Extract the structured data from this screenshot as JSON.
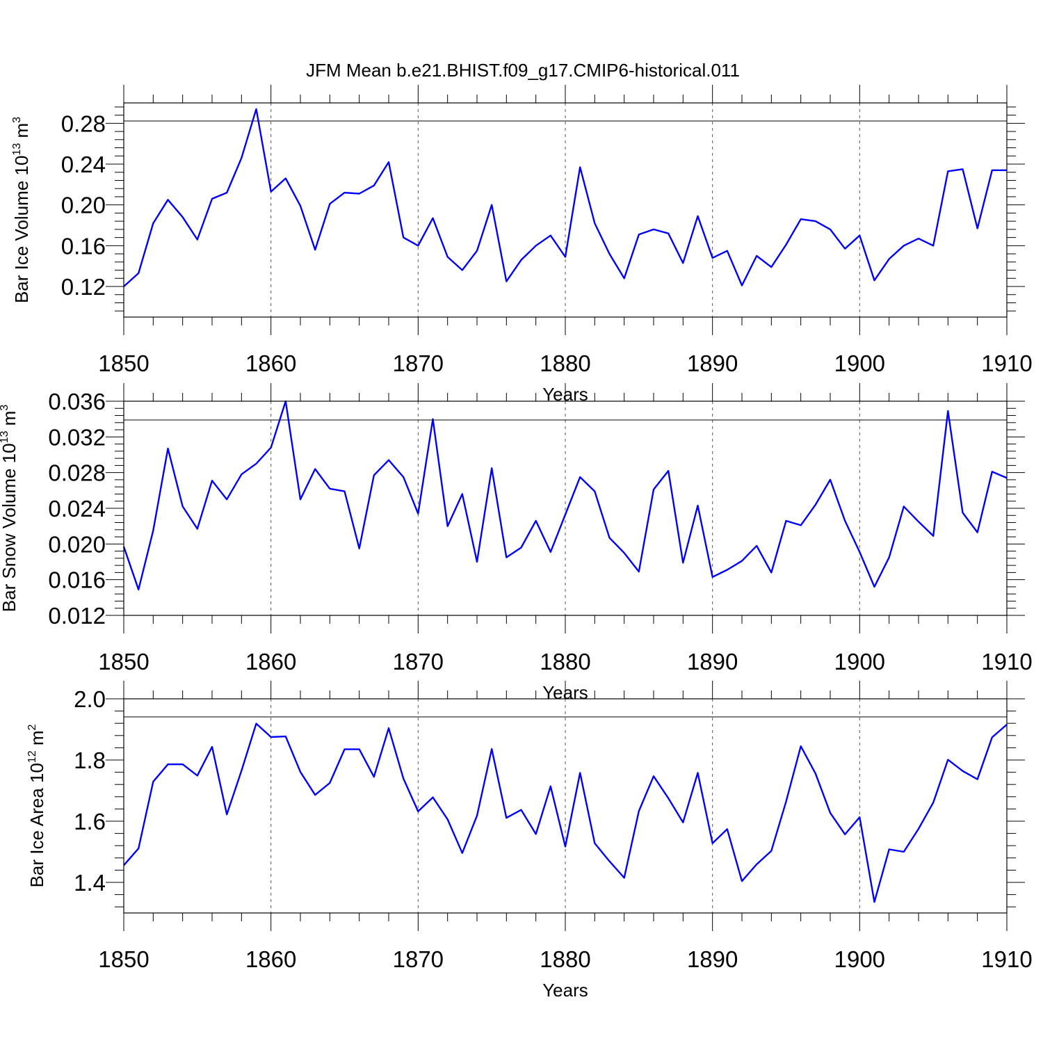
{
  "title": "JFM Mean b.e21.BHIST.f09_g17.CMIP6-historical.011",
  "line_color": "#0000ff",
  "chart_data": [
    {
      "type": "line",
      "ylabel": "Bar Ice Volume",
      "yunit_base": "10",
      "yunit_exp": "13",
      "yunit_tail": "m",
      "yunit_tail_exp": "3",
      "xlabel": "Years",
      "xlim": [
        1850,
        1910
      ],
      "ylim": [
        0.09,
        0.3
      ],
      "xticks": [
        "1850",
        "1860",
        "1870",
        "1880",
        "1890",
        "1900",
        "1910"
      ],
      "yticks": [
        "0.12",
        "0.16",
        "0.20",
        "0.24",
        "0.28"
      ],
      "grid": "vertical dashed at major x ticks",
      "x_start": 1850,
      "values": [
        0.12,
        0.133,
        0.182,
        0.205,
        0.188,
        0.166,
        0.206,
        0.212,
        0.246,
        0.294,
        0.213,
        0.226,
        0.199,
        0.156,
        0.201,
        0.212,
        0.211,
        0.219,
        0.242,
        0.168,
        0.16,
        0.187,
        0.149,
        0.136,
        0.155,
        0.2,
        0.125,
        0.146,
        0.16,
        0.17,
        0.149,
        0.237,
        0.182,
        0.152,
        0.128,
        0.171,
        0.176,
        0.172,
        0.143,
        0.189,
        0.148,
        0.155,
        0.121,
        0.15,
        0.139,
        0.161,
        0.186,
        0.184,
        0.176,
        0.157,
        0.17,
        0.126,
        0.147,
        0.16,
        0.167,
        0.16,
        0.233,
        0.235,
        0.177,
        0.234,
        0.234
      ]
    },
    {
      "type": "line",
      "ylabel": "Bar Snow Volume",
      "yunit_base": "10",
      "yunit_exp": "13",
      "yunit_tail": "m",
      "yunit_tail_exp": "3",
      "xlabel": "Years",
      "xlim": [
        1850,
        1910
      ],
      "ylim": [
        0.012,
        0.036
      ],
      "xticks": [
        "1850",
        "1860",
        "1870",
        "1880",
        "1890",
        "1900",
        "1910"
      ],
      "yticks": [
        "0.012",
        "0.016",
        "0.020",
        "0.024",
        "0.028",
        "0.032",
        "0.036"
      ],
      "grid": "vertical dashed at major x ticks",
      "x_start": 1850,
      "values": [
        0.0197,
        0.0149,
        0.0215,
        0.0307,
        0.0242,
        0.0217,
        0.0271,
        0.025,
        0.0278,
        0.029,
        0.0308,
        0.036,
        0.025,
        0.0284,
        0.0262,
        0.0259,
        0.0195,
        0.0277,
        0.0294,
        0.0275,
        0.0234,
        0.034,
        0.022,
        0.0256,
        0.018,
        0.0285,
        0.0185,
        0.0196,
        0.0226,
        0.0191,
        0.0233,
        0.0275,
        0.0259,
        0.0207,
        0.019,
        0.0169,
        0.0261,
        0.0282,
        0.0179,
        0.0243,
        0.0163,
        0.0171,
        0.0181,
        0.0198,
        0.0168,
        0.0226,
        0.0221,
        0.0244,
        0.0272,
        0.0226,
        0.0191,
        0.0152,
        0.0185,
        0.0242,
        0.0225,
        0.0209,
        0.0349,
        0.0235,
        0.0213,
        0.0281,
        0.0274
      ]
    },
    {
      "type": "line",
      "ylabel": "Bar Ice Area",
      "yunit_base": "10",
      "yunit_exp": "12",
      "yunit_tail": "m",
      "yunit_tail_exp": "2",
      "xlabel": "Years",
      "xlim": [
        1850,
        1910
      ],
      "ylim": [
        1.3,
        2.0
      ],
      "xticks": [
        "1850",
        "1860",
        "1870",
        "1880",
        "1890",
        "1900",
        "1910"
      ],
      "yticks": [
        "1.4",
        "1.6",
        "1.8",
        "2.0"
      ],
      "grid": "vertical dashed at major x ticks",
      "x_start": 1850,
      "values": [
        1.456,
        1.511,
        1.729,
        1.786,
        1.786,
        1.749,
        1.843,
        1.622,
        1.765,
        1.919,
        1.875,
        1.877,
        1.761,
        1.686,
        1.725,
        1.835,
        1.835,
        1.745,
        1.904,
        1.739,
        1.632,
        1.678,
        1.606,
        1.496,
        1.618,
        1.836,
        1.611,
        1.637,
        1.558,
        1.714,
        1.517,
        1.758,
        1.528,
        1.469,
        1.415,
        1.633,
        1.747,
        1.675,
        1.596,
        1.758,
        1.528,
        1.574,
        1.404,
        1.459,
        1.503,
        1.664,
        1.845,
        1.756,
        1.627,
        1.557,
        1.613,
        1.336,
        1.508,
        1.5,
        1.575,
        1.661,
        1.801,
        1.764,
        1.737,
        1.874,
        1.916
      ]
    }
  ]
}
